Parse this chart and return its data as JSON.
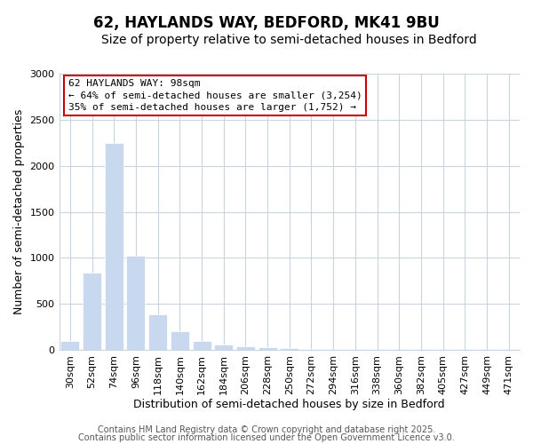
{
  "title": "62, HAYLANDS WAY, BEDFORD, MK41 9BU",
  "subtitle": "Size of property relative to semi-detached houses in Bedford",
  "xlabel": "Distribution of semi-detached houses by size in Bedford",
  "ylabel": "Number of semi-detached properties",
  "bar_labels": [
    "30sqm",
    "52sqm",
    "74sqm",
    "96sqm",
    "118sqm",
    "140sqm",
    "162sqm",
    "184sqm",
    "206sqm",
    "228sqm",
    "250sqm",
    "272sqm",
    "294sqm",
    "316sqm",
    "338sqm",
    "360sqm",
    "382sqm",
    "405sqm",
    "427sqm",
    "449sqm",
    "471sqm"
  ],
  "bar_values": [
    100,
    840,
    2250,
    1020,
    390,
    200,
    100,
    60,
    35,
    25,
    15,
    5,
    3,
    2,
    1,
    1,
    0,
    0,
    0,
    0,
    0
  ],
  "bar_color": "#c8d8ee",
  "bar_edge_color": "#ffffff",
  "vline_color": "#cc0000",
  "annotation_title": "62 HAYLANDS WAY: 98sqm",
  "annotation_line1": "← 64% of semi-detached houses are smaller (3,254)",
  "annotation_line2": "35% of semi-detached houses are larger (1,752) →",
  "annotation_box_edgecolor": "#cc0000",
  "annotation_box_facecolor": "#ffffff",
  "ylim": [
    0,
    3000
  ],
  "yticks": [
    0,
    500,
    1000,
    1500,
    2000,
    2500,
    3000
  ],
  "background_color": "#ffffff",
  "fig_background": "#ffffff",
  "grid_color": "#c8d4e0",
  "footer1": "Contains HM Land Registry data © Crown copyright and database right 2025.",
  "footer2": "Contains public sector information licensed under the Open Government Licence v3.0.",
  "title_fontsize": 12,
  "subtitle_fontsize": 10,
  "xlabel_fontsize": 9,
  "ylabel_fontsize": 9,
  "tick_fontsize": 8,
  "annotation_fontsize": 8,
  "footer_fontsize": 7
}
